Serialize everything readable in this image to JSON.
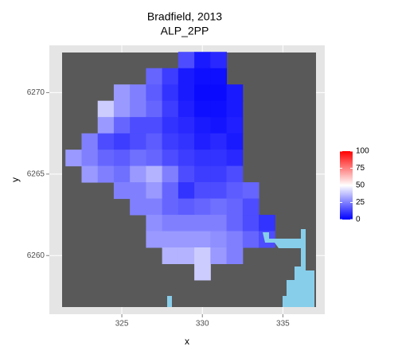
{
  "chart_data": {
    "type": "raster",
    "title": "Bradfield, 2013",
    "subtitle": "ALP_2PP",
    "x_label": "x",
    "y_label": "y",
    "xlim": [
      320.5,
      337.6
    ],
    "ylim": [
      6256.4,
      6272.9
    ],
    "xticks": [
      325,
      330,
      335
    ],
    "yticks": [
      6260,
      6265,
      6270
    ],
    "grid": true,
    "x": [
      322,
      323,
      324,
      325,
      326,
      327,
      328,
      329,
      330,
      331,
      332,
      333,
      334,
      335,
      336
    ],
    "y": [
      6272,
      6271,
      6270,
      6269,
      6268,
      6267,
      6266,
      6265,
      6264,
      6263,
      6262,
      6261,
      6260,
      6259
    ],
    "values": [
      [
        null,
        null,
        null,
        null,
        null,
        null,
        null,
        15,
        5,
        8,
        null,
        null,
        null,
        null,
        null
      ],
      [
        null,
        null,
        null,
        null,
        null,
        20,
        12,
        5,
        3,
        3,
        null,
        null,
        null,
        null,
        null
      ],
      [
        null,
        null,
        null,
        30,
        25,
        18,
        10,
        5,
        2,
        2,
        5,
        null,
        null,
        null,
        null
      ],
      [
        null,
        null,
        40,
        30,
        25,
        20,
        12,
        6,
        3,
        3,
        5,
        null,
        null,
        null,
        null
      ],
      [
        null,
        null,
        30,
        20,
        15,
        15,
        10,
        8,
        5,
        4,
        6,
        null,
        null,
        null,
        null
      ],
      [
        null,
        25,
        15,
        12,
        15,
        18,
        12,
        10,
        6,
        8,
        5,
        null,
        null,
        null,
        null
      ],
      [
        30,
        25,
        20,
        18,
        22,
        20,
        15,
        12,
        10,
        10,
        8,
        null,
        null,
        null,
        null
      ],
      [
        null,
        30,
        25,
        22,
        30,
        35,
        25,
        15,
        12,
        12,
        15,
        null,
        null,
        null,
        null
      ],
      [
        null,
        null,
        null,
        25,
        25,
        30,
        20,
        10,
        15,
        15,
        18,
        20,
        null,
        null,
        null
      ],
      [
        null,
        null,
        null,
        null,
        25,
        25,
        20,
        18,
        20,
        22,
        20,
        15,
        null,
        null,
        null
      ],
      [
        null,
        null,
        null,
        null,
        null,
        28,
        25,
        25,
        25,
        25,
        20,
        15,
        10,
        null,
        null
      ],
      [
        null,
        null,
        null,
        null,
        null,
        30,
        30,
        30,
        30,
        28,
        25,
        20,
        15,
        null,
        null
      ],
      [
        null,
        null,
        null,
        null,
        null,
        null,
        35,
        35,
        40,
        30,
        25,
        null,
        null,
        null,
        null
      ],
      [
        null,
        null,
        null,
        null,
        null,
        null,
        null,
        null,
        40,
        null,
        null,
        null,
        null,
        null,
        null
      ]
    ],
    "legend": {
      "title": "",
      "colors": [
        "#0000ff",
        "#ffffff",
        "#ff0000"
      ],
      "lim": [
        0,
        100
      ],
      "ticks": [
        0,
        25,
        50,
        75,
        100
      ]
    }
  }
}
